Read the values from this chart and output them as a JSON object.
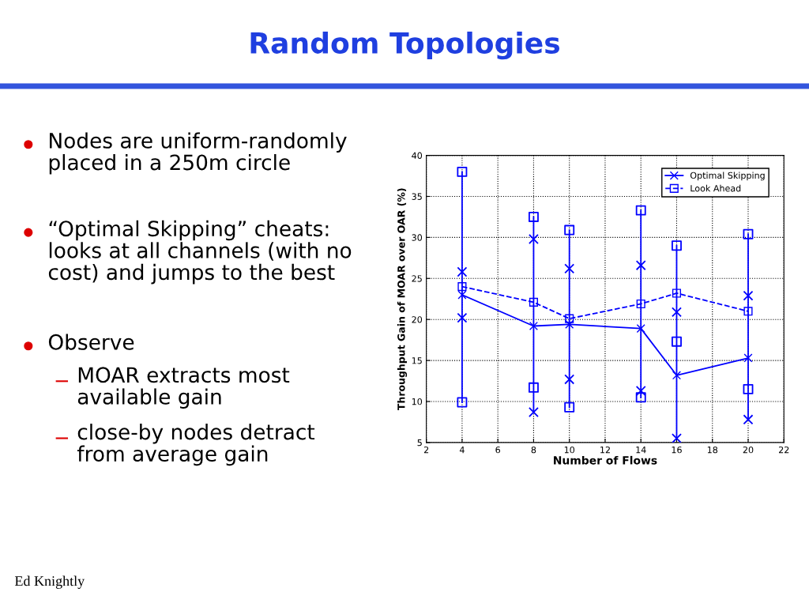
{
  "chart_data": {
    "type": "line",
    "title": "Random Topologies",
    "xlabel": "Number of Flows",
    "ylabel": "Throughput Gain of MOAR over OAR (%)",
    "x": [
      4,
      8,
      10,
      14,
      16,
      20
    ],
    "series": [
      {
        "name": "Optimal Skipping",
        "color": "#0000ff",
        "marker": "cross",
        "line_style": "solid",
        "values": [
          23.0,
          19.2,
          19.4,
          18.9,
          13.2,
          15.3
        ]
      },
      {
        "name": "Look Ahead",
        "color": "#0000ff",
        "marker": "square",
        "line_style": "dashed",
        "values": [
          24.0,
          22.1,
          20.1,
          21.9,
          23.2,
          21.0
        ]
      },
      {
        "type": "line",
        "color": "#0000ff",
        "marker": "none",
        "line_style": "solid",
        "x": [
          4,
          4
        ],
        "values": [
          9.9,
          38.0
        ]
      },
      {
        "type": "line",
        "color": "#0000ff",
        "marker": "none",
        "line_style": "solid",
        "x": [
          8,
          8
        ],
        "values": [
          8.7,
          32.5
        ]
      },
      {
        "type": "line",
        "color": "#0000ff",
        "marker": "none",
        "line_style": "solid",
        "x": [
          10,
          10
        ],
        "values": [
          9.3,
          30.9
        ]
      },
      {
        "type": "line",
        "color": "#0000ff",
        "marker": "none",
        "line_style": "solid",
        "x": [
          14,
          14
        ],
        "values": [
          10.5,
          33.3
        ]
      },
      {
        "type": "line",
        "color": "#0000ff",
        "marker": "none",
        "line_style": "solid",
        "x": [
          16,
          16
        ],
        "values": [
          5.5,
          29.0
        ]
      },
      {
        "type": "line",
        "color": "#0000ff",
        "marker": "none",
        "line_style": "solid",
        "x": [
          20,
          20
        ],
        "values": [
          7.8,
          30.4
        ]
      },
      {
        "type": "scatter",
        "color": "#0000ff",
        "marker": "cross",
        "values": [
          20.2,
          8.7,
          12.7,
          11.3,
          5.5,
          7.8
        ]
      },
      {
        "type": "scatter",
        "color": "#0000ff",
        "marker": "cross",
        "values": [
          25.8,
          29.8,
          26.2,
          26.6,
          20.9,
          22.9
        ]
      },
      {
        "type": "scatter",
        "color": "#0000ff",
        "marker": "square",
        "values": [
          9.9,
          11.7,
          9.3,
          10.5,
          17.3,
          11.5
        ]
      },
      {
        "type": "scatter",
        "color": "#0000ff",
        "marker": "square",
        "values": [
          38.0,
          32.5,
          30.9,
          33.3,
          29.0,
          30.4
        ]
      }
    ],
    "xlim": [
      2,
      22
    ],
    "xticks": [
      2,
      4,
      6,
      8,
      10,
      12,
      14,
      16,
      18,
      20,
      22
    ],
    "ylim": [
      5,
      40
    ],
    "yticks": [
      5,
      10,
      15,
      20,
      25,
      30,
      35,
      40
    ],
    "grid": true,
    "legend": "top right",
    "annotations": [
      "Nodes are uniform-randomly\nplaced in a 250m circle",
      "“Optimal Skipping” cheats:\nlooks at all channels (with no\ncost) and jumps to the best",
      "Observe",
      "MOAR extracts most\navailable gain",
      "close-by nodes detract\nfrom average gain",
      "Ed Knightly"
    ]
  }
}
